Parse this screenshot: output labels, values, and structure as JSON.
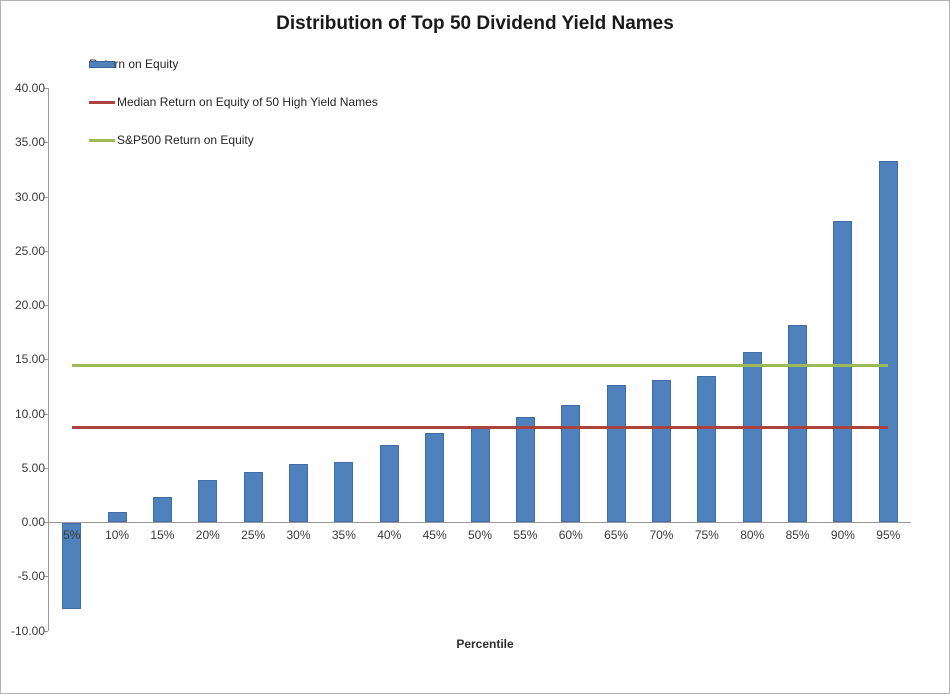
{
  "title": "Distribution of Top 50 Dividend Yield Names",
  "legend": {
    "items": [
      {
        "label": "Return on Equity",
        "swatch": "bar",
        "color": "#4f81bd"
      },
      {
        "label": "Median Return on Equity of 50 High Yield Names",
        "swatch": "line",
        "color": "#ae423e"
      },
      {
        "label": "S&P500 Return on Equity",
        "swatch": "line",
        "color": "#9bbb59"
      }
    ]
  },
  "chart_data": {
    "type": "bar",
    "title": "Distribution of Top 50 Dividend Yield Names",
    "categories": [
      "5%",
      "10%",
      "15%",
      "20%",
      "25%",
      "30%",
      "35%",
      "40%",
      "45%",
      "50%",
      "55%",
      "60%",
      "65%",
      "70%",
      "75%",
      "80%",
      "85%",
      "90%",
      "95%"
    ],
    "series": [
      {
        "name": "Return on Equity",
        "type": "bar",
        "color": "#4f81bd",
        "values": [
          -7.9,
          0.9,
          2.3,
          3.9,
          4.6,
          5.3,
          5.5,
          7.1,
          8.2,
          8.8,
          9.7,
          10.8,
          12.6,
          13.1,
          13.5,
          15.7,
          18.2,
          27.7,
          33.3
        ]
      },
      {
        "name": "Median Return on Equity of 50 High Yield Names",
        "type": "constant-line",
        "color": "#ae423e",
        "value": 8.75
      },
      {
        "name": "S&P500 Return on Equity",
        "type": "constant-line",
        "color": "#9bbb59",
        "value": 14.4
      }
    ],
    "xlabel": "Percentile",
    "ylabel": "",
    "ylim": [
      -10,
      40
    ],
    "ytick_step": 5,
    "ytick_decimals": 2,
    "grid": false,
    "legend_position": "top-left",
    "axis_color": "#9a9a9a",
    "label_color": "#3a3a3a"
  }
}
